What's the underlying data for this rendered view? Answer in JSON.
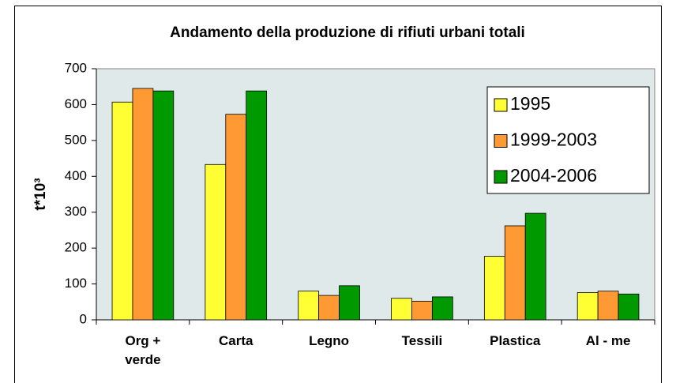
{
  "chart_data": {
    "type": "bar",
    "title": "Andamento della produzione di rifiuti urbani totali",
    "y_label": "t*10³",
    "categories": [
      "Org + verde",
      "Carta",
      "Legno",
      "Tessili",
      "Plastica",
      "Al - me"
    ],
    "series": [
      {
        "name": "1995",
        "color": "#ffff33",
        "values": [
          607,
          433,
          80,
          60,
          177,
          76
        ]
      },
      {
        "name": "1999-2003",
        "color": "#ff9933",
        "values": [
          645,
          573,
          68,
          52,
          262,
          80
        ]
      },
      {
        "name": "2004-2006",
        "color": "#009900",
        "values": [
          638,
          638,
          95,
          64,
          297,
          72
        ]
      }
    ],
    "ylim": [
      0,
      700
    ],
    "yticks": [
      0,
      100,
      200,
      300,
      400,
      500,
      600,
      700
    ],
    "grid": false,
    "legend": "upper right"
  }
}
